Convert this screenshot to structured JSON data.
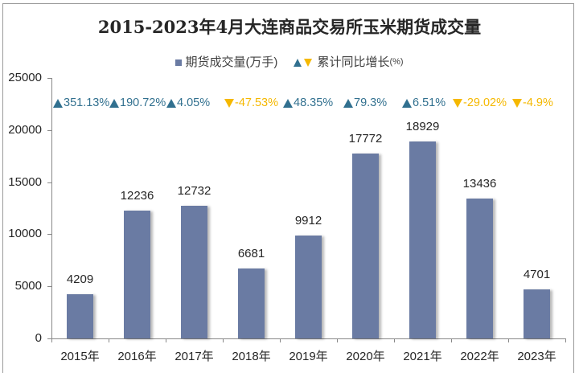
{
  "chart_data": {
    "type": "bar",
    "title": "2015-2023年4月大连商品交易所玉米期货成交量",
    "categories": [
      "2015年",
      "2016年",
      "2017年",
      "2018年",
      "2019年",
      "2020年",
      "2021年",
      "2022年",
      "2023年"
    ],
    "series": [
      {
        "name": "期货成交量(万手)",
        "values": [
          4209,
          12236,
          12732,
          6681,
          9912,
          17772,
          18929,
          13436,
          4701
        ]
      },
      {
        "name": "累计同比增长(%)",
        "values": [
          351.13,
          190.72,
          4.05,
          -47.53,
          48.35,
          79.3,
          6.51,
          -29.02,
          -4.9
        ]
      }
    ],
    "xlabel": "",
    "ylabel": "",
    "ylim": [
      0,
      25000
    ],
    "yticks": [
      0,
      5000,
      10000,
      15000,
      20000,
      25000
    ],
    "grid": false,
    "legend_position": "top"
  },
  "title": "2015-2023年4月大连商品交易所玉米期货成交量",
  "legend": {
    "volume_label": "期货成交量(万手)",
    "growth_label": "累计同比增长",
    "growth_unit": "(%)"
  },
  "colors": {
    "bar": "#6a7ba3",
    "up": "#31708f",
    "down": "#f5b800",
    "text": "#262626"
  },
  "yaxis": {
    "ticks": [
      "0",
      "5000",
      "10000",
      "15000",
      "20000",
      "25000"
    ]
  },
  "bars": [
    {
      "year": "2015年",
      "value": "4209",
      "growth": "351.13%",
      "dir": "up"
    },
    {
      "year": "2016年",
      "value": "12236",
      "growth": "190.72%",
      "dir": "up"
    },
    {
      "year": "2017年",
      "value": "12732",
      "growth": "4.05%",
      "dir": "up"
    },
    {
      "year": "2018年",
      "value": "6681",
      "growth": "-47.53%",
      "dir": "down"
    },
    {
      "year": "2019年",
      "value": "9912",
      "growth": "48.35%",
      "dir": "up"
    },
    {
      "year": "2020年",
      "value": "17772",
      "growth": "79.3%",
      "dir": "up"
    },
    {
      "year": "2021年",
      "value": "18929",
      "growth": "6.51%",
      "dir": "up"
    },
    {
      "year": "2022年",
      "value": "13436",
      "growth": "-29.02%",
      "dir": "down"
    },
    {
      "year": "2023年",
      "value": "4701",
      "growth": "-4.9%",
      "dir": "down"
    }
  ]
}
